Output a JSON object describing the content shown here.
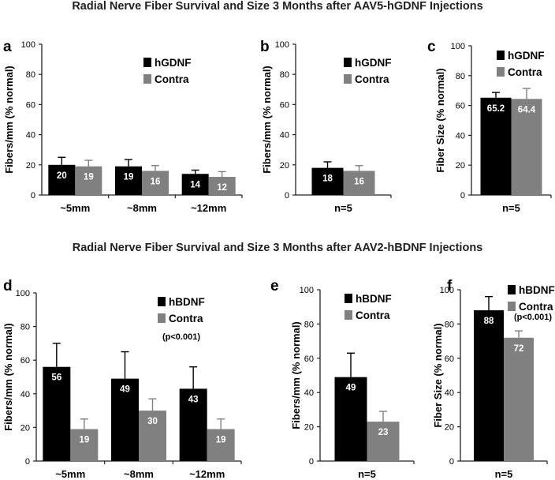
{
  "titles": [
    "Radial Nerve Fiber Survival and Size 3 Months after AAV5-hGDNF Injections",
    "Radial Nerve Fiber Survival and Size 3 Months after AAV2-hBDNF Injections"
  ],
  "colors": {
    "treated": "#000000",
    "contra": "#808080",
    "axis": "#222222"
  },
  "chart_data": [
    {
      "panel": "a",
      "type": "bar",
      "categories": [
        "~5mm",
        "~8mm",
        "~12mm"
      ],
      "series": [
        {
          "name": "hGDNF",
          "values": [
            20,
            19,
            14
          ],
          "errors": [
            5,
            4.5,
            2.5
          ],
          "labels": [
            "20",
            "19",
            "14"
          ]
        },
        {
          "name": "Contra",
          "values": [
            19,
            16,
            12
          ],
          "errors": [
            4,
            3.5,
            3.5
          ],
          "labels": [
            "19",
            "16",
            "12"
          ]
        }
      ],
      "ylabel": "Fibers/mm (% normal)",
      "ylim": [
        0,
        100
      ],
      "yticks": [
        0,
        20,
        40,
        60,
        80,
        100
      ],
      "note": "",
      "legend": "top-right"
    },
    {
      "panel": "b",
      "type": "bar",
      "categories": [
        "n=5"
      ],
      "series": [
        {
          "name": "hGDNF",
          "values": [
            18
          ],
          "errors": [
            4
          ],
          "labels": [
            "18"
          ]
        },
        {
          "name": "Contra",
          "values": [
            16
          ],
          "errors": [
            3.5
          ],
          "labels": [
            "16"
          ]
        }
      ],
      "ylabel": "Fibers/mm (% normal)",
      "ylim": [
        0,
        100
      ],
      "yticks": [
        0,
        20,
        40,
        60,
        80,
        100
      ],
      "note": "",
      "legend": "top-right"
    },
    {
      "panel": "c",
      "type": "bar",
      "categories": [
        "n=5"
      ],
      "series": [
        {
          "name": "hGDNF",
          "values": [
            65.2
          ],
          "errors": [
            3.5
          ],
          "labels": [
            "65.2"
          ]
        },
        {
          "name": "Contra",
          "values": [
            64.4
          ],
          "errors": [
            7
          ],
          "labels": [
            "64.4"
          ]
        }
      ],
      "ylabel": "Fiber Size (% normal)",
      "ylim": [
        0,
        100
      ],
      "yticks": [
        0,
        20,
        40,
        60,
        80,
        100
      ],
      "note": "",
      "legend": "top-right"
    },
    {
      "panel": "d",
      "type": "bar",
      "categories": [
        "~5mm",
        "~8mm",
        "~12mm"
      ],
      "series": [
        {
          "name": "hBDNF",
          "values": [
            56,
            49,
            43
          ],
          "errors": [
            14,
            16,
            13
          ],
          "labels": [
            "56",
            "49",
            "43"
          ]
        },
        {
          "name": "Contra",
          "values": [
            19,
            30,
            19
          ],
          "errors": [
            6,
            7,
            6
          ],
          "labels": [
            "19",
            "30",
            "19"
          ]
        }
      ],
      "ylabel": "Fibers/mm (% normal)",
      "ylim": [
        0,
        100
      ],
      "yticks": [
        0,
        20,
        40,
        60,
        80,
        100
      ],
      "note": "(p<0.001)",
      "legend": "top-right"
    },
    {
      "panel": "e",
      "type": "bar",
      "categories": [
        "n=5"
      ],
      "series": [
        {
          "name": "hBDNF",
          "values": [
            49
          ],
          "errors": [
            14
          ],
          "labels": [
            "49"
          ]
        },
        {
          "name": "Contra",
          "values": [
            23
          ],
          "errors": [
            6
          ],
          "labels": [
            "23"
          ]
        }
      ],
      "ylabel": "Fibers/mm (% normal)",
      "ylim": [
        0,
        100
      ],
      "yticks": [
        0,
        20,
        40,
        60,
        80,
        100
      ],
      "note": "",
      "legend": "top-right"
    },
    {
      "panel": "f",
      "type": "bar",
      "categories": [
        "n=5"
      ],
      "series": [
        {
          "name": "hBDNF",
          "values": [
            88
          ],
          "errors": [
            8
          ],
          "labels": [
            "88"
          ]
        },
        {
          "name": "Contra",
          "values": [
            72
          ],
          "errors": [
            4
          ],
          "labels": [
            "72"
          ]
        }
      ],
      "ylabel": "Fiber Size (% normal)",
      "ylim": [
        0,
        100
      ],
      "yticks": [
        0,
        20,
        40,
        60,
        80,
        100
      ],
      "note": "(p<0.001)",
      "legend": "top-right"
    }
  ]
}
